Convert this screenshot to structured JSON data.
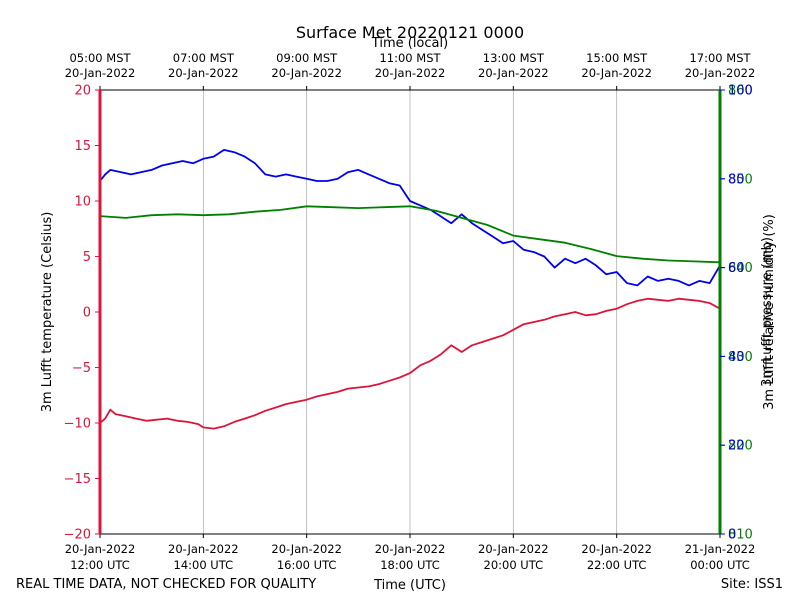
{
  "chart_data": {
    "type": "line",
    "title": "Surface Met 20220121 0000",
    "top_axis_label": "Time (local)",
    "xlabel": "Time (UTC)",
    "footer_left": "REAL TIME DATA, NOT CHECKED FOR QUALITY",
    "footer_right": "Site: ISS1",
    "x_range_hours_utc": [
      12,
      24
    ],
    "x_ticks_utc": [
      {
        "hour": 12,
        "line1": "20-Jan-2022",
        "line2": "12:00 UTC"
      },
      {
        "hour": 14,
        "line1": "20-Jan-2022",
        "line2": "14:00 UTC"
      },
      {
        "hour": 16,
        "line1": "20-Jan-2022",
        "line2": "16:00 UTC"
      },
      {
        "hour": 18,
        "line1": "20-Jan-2022",
        "line2": "18:00 UTC"
      },
      {
        "hour": 20,
        "line1": "20-Jan-2022",
        "line2": "20:00 UTC"
      },
      {
        "hour": 22,
        "line1": "20-Jan-2022",
        "line2": "22:00 UTC"
      },
      {
        "hour": 24,
        "line1": "21-Jan-2022",
        "line2": "00:00 UTC"
      }
    ],
    "x_ticks_local": [
      {
        "hour": 12,
        "line1": "05:00 MST",
        "line2": "20-Jan-2022"
      },
      {
        "hour": 14,
        "line1": "07:00 MST",
        "line2": "20-Jan-2022"
      },
      {
        "hour": 16,
        "line1": "09:00 MST",
        "line2": "20-Jan-2022"
      },
      {
        "hour": 18,
        "line1": "11:00 MST",
        "line2": "20-Jan-2022"
      },
      {
        "hour": 20,
        "line1": "13:00 MST",
        "line2": "20-Jan-2022"
      },
      {
        "hour": 22,
        "line1": "15:00 MST",
        "line2": "20-Jan-2022"
      },
      {
        "hour": 24,
        "line1": "17:00 MST",
        "line2": "20-Jan-2022"
      }
    ],
    "y_left": {
      "label": "3m Lufft temperature (Celsius)",
      "color": "#dc143c",
      "range": [
        -20,
        20
      ],
      "ticks": [
        20,
        15,
        10,
        5,
        0,
        -5,
        -10,
        -15,
        -20
      ],
      "tick_labels": [
        "20",
        "15",
        "10",
        "5",
        "0",
        "−5",
        "−10",
        "−15",
        "−20"
      ]
    },
    "y_right_humidity": {
      "label": "3m Lufft relative humidity (%)",
      "color": "#0000ee",
      "range": [
        0,
        100
      ],
      "ticks": [
        0,
        20,
        40,
        60,
        80,
        100
      ],
      "tick_labels": [
        "0",
        "20",
        "40",
        "60",
        "80",
        "100"
      ]
    },
    "y_right_pressure": {
      "label": "3m Lufft pressure (mb)",
      "color": "#007f00",
      "range": [
        810,
        860
      ],
      "ticks": [
        810,
        820,
        830,
        840,
        850,
        860
      ],
      "tick_labels": [
        "810",
        "820",
        "830",
        "840",
        "850",
        "860"
      ]
    },
    "series": [
      {
        "name": "3m Lufft temperature",
        "axis": "left",
        "color": "#dc143c",
        "x": [
          12.0,
          12.1,
          12.2,
          12.3,
          12.5,
          12.7,
          12.9,
          13.1,
          13.3,
          13.5,
          13.7,
          13.9,
          14.0,
          14.2,
          14.4,
          14.6,
          14.8,
          15.0,
          15.2,
          15.4,
          15.6,
          15.8,
          16.0,
          16.2,
          16.4,
          16.6,
          16.8,
          17.0,
          17.2,
          17.4,
          17.6,
          17.8,
          18.0,
          18.2,
          18.4,
          18.6,
          18.8,
          19.0,
          19.2,
          19.4,
          19.6,
          19.8,
          20.0,
          20.2,
          20.4,
          20.6,
          20.8,
          21.0,
          21.2,
          21.4,
          21.6,
          21.8,
          22.0,
          22.2,
          22.4,
          22.6,
          22.8,
          23.0,
          23.2,
          23.4,
          23.6,
          23.8,
          24.0
        ],
        "values": [
          -10.0,
          -9.6,
          -8.8,
          -9.2,
          -9.4,
          -9.6,
          -9.8,
          -9.7,
          -9.6,
          -9.8,
          -9.9,
          -10.1,
          -10.4,
          -10.5,
          -10.3,
          -9.9,
          -9.6,
          -9.3,
          -8.9,
          -8.6,
          -8.3,
          -8.1,
          -7.9,
          -7.6,
          -7.4,
          -7.2,
          -6.9,
          -6.8,
          -6.7,
          -6.5,
          -6.2,
          -5.9,
          -5.5,
          -4.8,
          -4.4,
          -3.8,
          -3.0,
          -3.6,
          -3.0,
          -2.7,
          -2.4,
          -2.1,
          -1.6,
          -1.1,
          -0.9,
          -0.7,
          -0.4,
          -0.2,
          0.0,
          -0.3,
          -0.2,
          0.1,
          0.3,
          0.7,
          1.0,
          1.2,
          1.1,
          1.0,
          1.2,
          1.1,
          1.0,
          0.8,
          0.3
        ]
      },
      {
        "name": "3m Lufft relative humidity",
        "axis": "right_humidity",
        "color": "#0000ee",
        "x": [
          12.0,
          12.1,
          12.2,
          12.4,
          12.6,
          12.8,
          13.0,
          13.2,
          13.4,
          13.6,
          13.8,
          14.0,
          14.2,
          14.4,
          14.6,
          14.8,
          15.0,
          15.2,
          15.4,
          15.6,
          15.8,
          16.0,
          16.2,
          16.4,
          16.6,
          16.8,
          17.0,
          17.2,
          17.4,
          17.6,
          17.8,
          18.0,
          18.2,
          18.4,
          18.6,
          18.8,
          19.0,
          19.2,
          19.4,
          19.6,
          19.8,
          20.0,
          20.2,
          20.4,
          20.6,
          20.8,
          21.0,
          21.2,
          21.4,
          21.6,
          21.8,
          22.0,
          22.2,
          22.4,
          22.6,
          22.8,
          23.0,
          23.2,
          23.4,
          23.6,
          23.8,
          24.0
        ],
        "values": [
          79.5,
          81.0,
          82.0,
          81.5,
          81.0,
          81.5,
          82.0,
          83.0,
          83.5,
          84.0,
          83.5,
          84.5,
          85.0,
          86.5,
          86.0,
          85.0,
          83.5,
          81.0,
          80.5,
          81.0,
          80.5,
          80.0,
          79.5,
          79.5,
          80.0,
          81.5,
          82.0,
          81.0,
          80.0,
          79.0,
          78.5,
          75.0,
          74.0,
          73.0,
          71.5,
          70.0,
          72.0,
          70.0,
          68.5,
          67.0,
          65.5,
          66.0,
          64.0,
          63.5,
          62.5,
          60.0,
          62.0,
          61.0,
          62.0,
          60.5,
          58.5,
          59.0,
          56.5,
          56.0,
          58.0,
          57.0,
          57.5,
          57.0,
          56.0,
          57.0,
          56.5,
          60.5
        ]
      },
      {
        "name": "3m Lufft pressure",
        "axis": "right_pressure",
        "color": "#007f00",
        "x": [
          12.0,
          12.5,
          13.0,
          13.5,
          14.0,
          14.5,
          15.0,
          15.5,
          16.0,
          16.5,
          17.0,
          17.5,
          18.0,
          18.5,
          19.0,
          19.5,
          20.0,
          20.5,
          21.0,
          21.5,
          22.0,
          22.5,
          23.0,
          23.5,
          24.0
        ],
        "values": [
          845.8,
          845.6,
          845.9,
          846.0,
          845.9,
          846.0,
          846.3,
          846.5,
          846.9,
          846.8,
          846.7,
          846.8,
          846.9,
          846.4,
          845.6,
          844.8,
          843.6,
          843.2,
          842.8,
          842.1,
          841.3,
          841.0,
          840.8,
          840.7,
          840.6
        ]
      }
    ]
  }
}
